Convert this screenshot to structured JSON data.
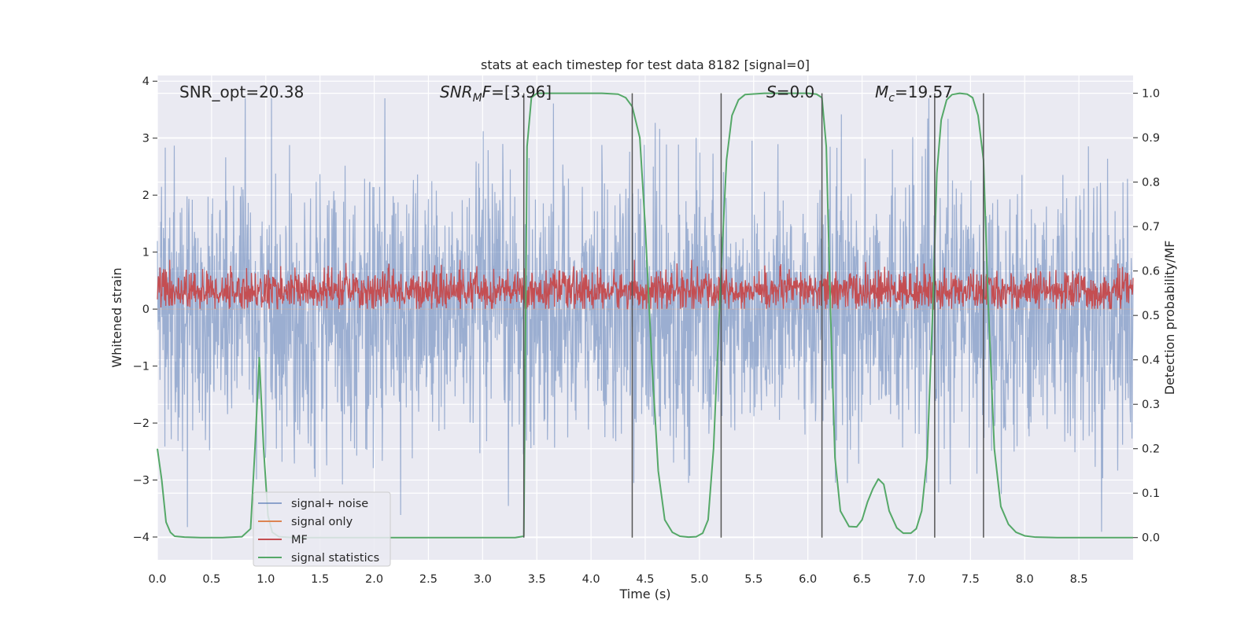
{
  "chart_data": {
    "type": "line",
    "title": "stats at each timestep for test data 8182 [signal=0]",
    "xlabel": "Time (s)",
    "ylabel": "Whitened strain",
    "ylabel_right": "Detection probability/MF",
    "xlim": [
      0,
      9
    ],
    "ylim": [
      -4.4,
      4.1
    ],
    "ylim_right": [
      -0.05,
      1.04
    ],
    "xticks": [
      0,
      0.5,
      1,
      1.5,
      2,
      2.5,
      3,
      3.5,
      4,
      4.5,
      5,
      5.5,
      6,
      6.5,
      7,
      7.5,
      8,
      8.5
    ],
    "xtick_labels": [
      "0.0",
      "0.5",
      "1.0",
      "1.5",
      "2.0",
      "2.5",
      "3.0",
      "3.5",
      "4.0",
      "4.5",
      "5.0",
      "5.5",
      "6.0",
      "6.5",
      "7.0",
      "7.5",
      "8.0",
      "8.5"
    ],
    "yticks": [
      -4,
      -3,
      -2,
      -1,
      0,
      1,
      2,
      3,
      4
    ],
    "ytick_labels": [
      "−4",
      "−3",
      "−2",
      "−1",
      "0",
      "1",
      "2",
      "3",
      "4"
    ],
    "yticks_right": [
      0,
      0.1,
      0.2,
      0.3,
      0.4,
      0.5,
      0.6,
      0.7,
      0.8,
      0.9,
      1.0
    ],
    "ytick_labels_right": [
      "0.0",
      "0.1",
      "0.2",
      "0.3",
      "0.4",
      "0.5",
      "0.6",
      "0.7",
      "0.8",
      "0.9",
      "1.0"
    ],
    "annotations": [
      {
        "text": "SNR_opt=20.38",
        "x": 0.2
      },
      {
        "text": "SNR_MF=[3.96]",
        "x": 2.6
      },
      {
        "text": "S=0.0",
        "x": 5.6
      },
      {
        "text": "M_c=19.57",
        "x": 6.6
      }
    ],
    "vlines": [
      3.38,
      4.38,
      5.2,
      6.13,
      7.17,
      7.62
    ],
    "vline_range": [
      0.0,
      1.0
    ],
    "series": [
      {
        "name": "signal+ noise",
        "axis": "left",
        "color": "#4c72b0",
        "description": "whitened noise, amplitude envelope roughly -4 to 3.7",
        "envelope": [
          -4.0,
          3.7
        ]
      },
      {
        "name": "signal only",
        "axis": "left",
        "color": "#dd8452",
        "description": "zero (no signal)",
        "values_constant": 0
      },
      {
        "name": "MF",
        "axis": "right",
        "color": "#c44e52",
        "description": "matched-filter output, band roughly 0.52 to 0.62",
        "envelope": [
          0.515,
          0.625
        ]
      },
      {
        "name": "signal statistics",
        "axis": "right",
        "color": "#55a868",
        "x": [
          0,
          0.04,
          0.08,
          0.12,
          0.16,
          0.25,
          0.4,
          0.6,
          0.78,
          0.86,
          0.9,
          0.94,
          0.98,
          1.02,
          1.06,
          1.12,
          1.25,
          1.5,
          2.0,
          2.5,
          3.0,
          3.3,
          3.38,
          3.41,
          3.45,
          3.5,
          3.7,
          3.9,
          4.1,
          4.25,
          4.32,
          4.38,
          4.45,
          4.5,
          4.56,
          4.62,
          4.68,
          4.75,
          4.82,
          4.9,
          4.97,
          5.03,
          5.08,
          5.13,
          5.2,
          5.25,
          5.3,
          5.36,
          5.42,
          5.6,
          5.8,
          6.0,
          6.08,
          6.13,
          6.17,
          6.21,
          6.25,
          6.3,
          6.38,
          6.45,
          6.5,
          6.55,
          6.6,
          6.65,
          6.7,
          6.75,
          6.82,
          6.88,
          6.95,
          7.0,
          7.05,
          7.1,
          7.15,
          7.19,
          7.23,
          7.28,
          7.33,
          7.4,
          7.47,
          7.52,
          7.57,
          7.62,
          7.66,
          7.72,
          7.78,
          7.85,
          7.92,
          8.0,
          8.1,
          8.3,
          8.6,
          9.0
        ],
        "values": [
          0.2,
          0.13,
          0.035,
          0.012,
          0.003,
          0.001,
          0.0,
          0.0,
          0.002,
          0.02,
          0.2,
          0.405,
          0.2,
          0.05,
          0.012,
          0.002,
          0.0,
          0.0,
          0.0,
          0.0,
          0.0,
          0.0,
          0.003,
          0.88,
          0.99,
          1.0,
          1.0,
          1.0,
          1.0,
          0.998,
          0.99,
          0.97,
          0.9,
          0.7,
          0.4,
          0.15,
          0.04,
          0.012,
          0.003,
          0.001,
          0.002,
          0.01,
          0.04,
          0.2,
          0.6,
          0.85,
          0.95,
          0.985,
          0.997,
          1.0,
          1.0,
          1.0,
          0.998,
          0.99,
          0.88,
          0.5,
          0.18,
          0.06,
          0.025,
          0.024,
          0.04,
          0.08,
          0.11,
          0.132,
          0.12,
          0.06,
          0.022,
          0.01,
          0.01,
          0.02,
          0.06,
          0.18,
          0.5,
          0.82,
          0.94,
          0.985,
          0.997,
          1.0,
          0.998,
          0.99,
          0.95,
          0.85,
          0.55,
          0.2,
          0.07,
          0.03,
          0.012,
          0.004,
          0.001,
          0.0,
          0.0,
          0.0
        ]
      }
    ],
    "legend": {
      "location": "lower-left",
      "entries": [
        {
          "label": "signal+ noise",
          "color": "#4c72b0"
        },
        {
          "label": "signal only",
          "color": "#dd8452"
        },
        {
          "label": "MF",
          "color": "#c44e52"
        },
        {
          "label": "signal statistics",
          "color": "#55a868"
        }
      ]
    },
    "grid": true
  }
}
